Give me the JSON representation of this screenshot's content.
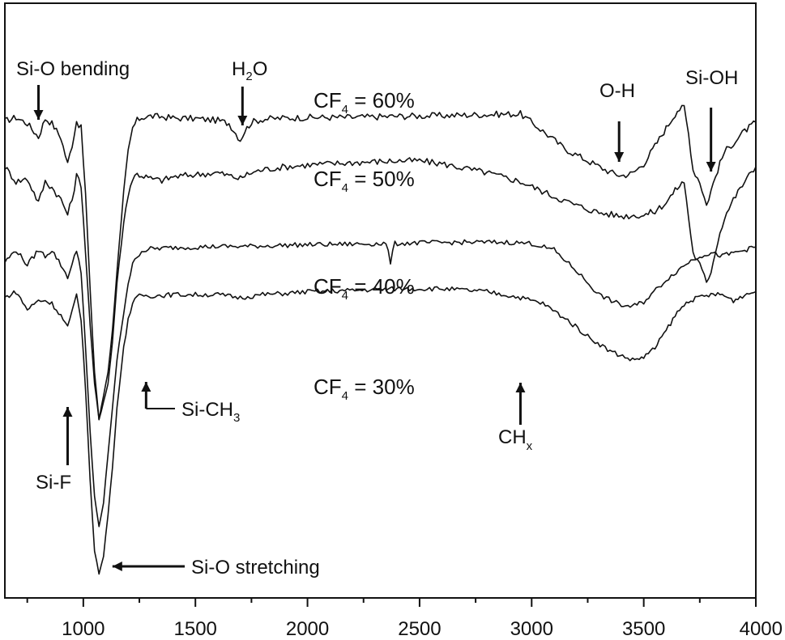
{
  "chart_data": {
    "type": "line",
    "title": "",
    "xlabel": "",
    "ylabel": "",
    "xlim": [
      650,
      4000
    ],
    "ylim": [
      0,
      100
    ],
    "x_ticks": [
      1000,
      1500,
      2000,
      2500,
      3000,
      3500,
      4000
    ],
    "x_tick_labels": [
      "1000",
      "1500",
      "2000",
      "2500",
      "3000",
      "3500",
      "4000"
    ],
    "grid": false,
    "legend": "none",
    "line_color": "#111111",
    "series": [
      {
        "label_main": "CF",
        "label_sub": "4",
        "label_rest": " = 60%",
        "x": [
          650,
          700,
          750,
          800,
          830,
          860,
          900,
          930,
          950,
          970,
          990,
          1010,
          1030,
          1050,
          1070,
          1090,
          1110,
          1130,
          1150,
          1180,
          1200,
          1220,
          1240,
          1260,
          1280,
          1300,
          1350,
          1400,
          1500,
          1600,
          1650,
          1700,
          1720,
          1750,
          1800,
          1900,
          2000,
          2200,
          2400,
          2600,
          2800,
          2950,
          3050,
          3150,
          3250,
          3350,
          3400,
          3450,
          3500,
          3550,
          3600,
          3650,
          3680,
          3700,
          3720,
          3750,
          3780,
          3800,
          3830,
          3860,
          3900,
          3950,
          4000
        ],
        "y": [
          80.2,
          80.8,
          79.8,
          77.5,
          80.6,
          79.8,
          77.4,
          73.0,
          76.2,
          80.2,
          79.0,
          68.0,
          52.0,
          38.0,
          30.0,
          34.0,
          38.0,
          45.0,
          55.0,
          68.0,
          75.0,
          79.0,
          80.3,
          80.8,
          80.9,
          81.0,
          80.9,
          80.7,
          80.6,
          80.3,
          79.8,
          77.0,
          78.5,
          80.0,
          80.5,
          80.7,
          80.8,
          80.8,
          81.0,
          81.1,
          81.3,
          81.4,
          78.5,
          75.5,
          73.5,
          71.6,
          71.0,
          71.4,
          73.0,
          76.0,
          79.0,
          82.0,
          82.5,
          78.0,
          72.0,
          70.0,
          66.0,
          68.5,
          72.0,
          75.0,
          76.5,
          78.5,
          80.0
        ]
      },
      {
        "label_main": "CF",
        "label_sub": "4",
        "label_rest": " = 50%",
        "x": [
          650,
          700,
          750,
          800,
          830,
          860,
          900,
          930,
          950,
          970,
          990,
          1010,
          1030,
          1050,
          1070,
          1090,
          1110,
          1130,
          1150,
          1180,
          1200,
          1220,
          1240,
          1260,
          1280,
          1300,
          1350,
          1400,
          1500,
          1600,
          1650,
          1700,
          1720,
          1750,
          1800,
          1900,
          2000,
          2200,
          2400,
          2500,
          2600,
          2800,
          2950,
          3100,
          3200,
          3300,
          3400,
          3500,
          3550,
          3600,
          3650,
          3680,
          3700,
          3720,
          3750,
          3780,
          3800,
          3830,
          3860,
          3900,
          3950,
          4000
        ],
        "y": [
          72.5,
          70.0,
          70.5,
          66.5,
          70.0,
          69.0,
          67.0,
          64.5,
          67.0,
          71.0,
          69.5,
          58.0,
          46.0,
          36.0,
          30.0,
          33.0,
          36.0,
          43.0,
          53.0,
          63.0,
          68.0,
          70.5,
          71.3,
          71.0,
          70.8,
          70.5,
          70.2,
          70.8,
          71.2,
          71.5,
          71.0,
          70.5,
          71.0,
          71.5,
          72.0,
          72.5,
          72.8,
          73.2,
          73.5,
          73.5,
          73.0,
          71.5,
          70.0,
          67.5,
          66.0,
          64.8,
          64.2,
          64.4,
          65.0,
          66.5,
          69.0,
          70.0,
          64.0,
          58.0,
          56.0,
          53.0,
          55.0,
          60.0,
          64.0,
          67.0,
          70.0,
          72.5
        ]
      },
      {
        "label_main": "CF",
        "label_sub": "4",
        "label_rest": " = 40%",
        "x": [
          650,
          700,
          750,
          800,
          830,
          860,
          900,
          930,
          950,
          970,
          990,
          1010,
          1030,
          1050,
          1070,
          1090,
          1110,
          1130,
          1150,
          1180,
          1200,
          1220,
          1240,
          1260,
          1280,
          1300,
          1350,
          1400,
          1500,
          1600,
          1700,
          1800,
          1900,
          2000,
          2200,
          2350,
          2370,
          2390,
          2500,
          2700,
          2900,
          3000,
          3100,
          3200,
          3300,
          3400,
          3450,
          3500,
          3600,
          3700,
          3750,
          3800,
          3850,
          3900,
          3950,
          4000
        ],
        "y": [
          56.5,
          58.5,
          56.0,
          58.5,
          57.5,
          58.5,
          56.0,
          54.0,
          56.0,
          58.5,
          55.0,
          42.0,
          28.0,
          17.0,
          12.0,
          16.0,
          24.0,
          32.0,
          40.0,
          48.0,
          53.0,
          56.0,
          57.5,
          58.3,
          58.5,
          58.7,
          58.8,
          58.9,
          59.0,
          59.1,
          59.1,
          59.2,
          59.3,
          59.4,
          59.5,
          59.6,
          56.5,
          59.6,
          59.7,
          59.8,
          59.8,
          59.6,
          58.5,
          55.0,
          51.0,
          49.2,
          49.0,
          49.8,
          53.5,
          56.5,
          57.5,
          58.0,
          57.5,
          58.0,
          58.5,
          59.0
        ]
      },
      {
        "label_main": "CF",
        "label_sub": "4",
        "label_rest": " = 30%",
        "x": [
          650,
          700,
          750,
          800,
          830,
          860,
          900,
          930,
          950,
          970,
          990,
          1010,
          1030,
          1050,
          1070,
          1090,
          1110,
          1130,
          1150,
          1180,
          1200,
          1220,
          1240,
          1260,
          1280,
          1300,
          1350,
          1400,
          1500,
          1600,
          1700,
          1800,
          1900,
          2000,
          2200,
          2400,
          2600,
          2800,
          2950,
          3050,
          3150,
          3250,
          3350,
          3450,
          3500,
          3550,
          3600,
          3650,
          3700,
          3750,
          3800,
          3850,
          3900,
          3950,
          4000
        ],
        "y": [
          50.5,
          51.5,
          48.5,
          50.0,
          50.0,
          49.5,
          47.5,
          45.5,
          48.0,
          51.0,
          47.0,
          35.0,
          20.0,
          8.0,
          4.0,
          7.0,
          14.0,
          22.0,
          32.0,
          42.0,
          47.0,
          49.5,
          50.5,
          51.0,
          50.8,
          50.8,
          50.9,
          51.0,
          51.0,
          51.0,
          50.5,
          51.0,
          51.2,
          51.5,
          51.7,
          52.0,
          52.0,
          51.5,
          50.5,
          49.5,
          47.0,
          44.0,
          41.5,
          40.0,
          40.5,
          42.0,
          45.0,
          48.0,
          50.0,
          50.5,
          51.0,
          51.0,
          50.0,
          51.0,
          51.5
        ]
      }
    ],
    "annotations": {
      "si_o_bending": "Si-O bending",
      "h2o_main": "H",
      "h2o_sub": "2",
      "h2o_rest": "O",
      "o_h": "O-H",
      "si_oh": "Si-OH",
      "si_ch3_main": "Si-CH",
      "si_ch3_sub": "3",
      "si_f": "Si-F",
      "ch_x_main": "CH",
      "ch_x_sub": "x",
      "si_o_stretching": "Si-O stretching"
    },
    "annotation_x": {
      "si_o_bending": 800,
      "h2o": 1710,
      "o_h": 3390,
      "si_oh": 3800,
      "si_ch3": 1280,
      "si_f": 930,
      "ch_x": 2950,
      "si_o_stretching": 1130
    }
  }
}
